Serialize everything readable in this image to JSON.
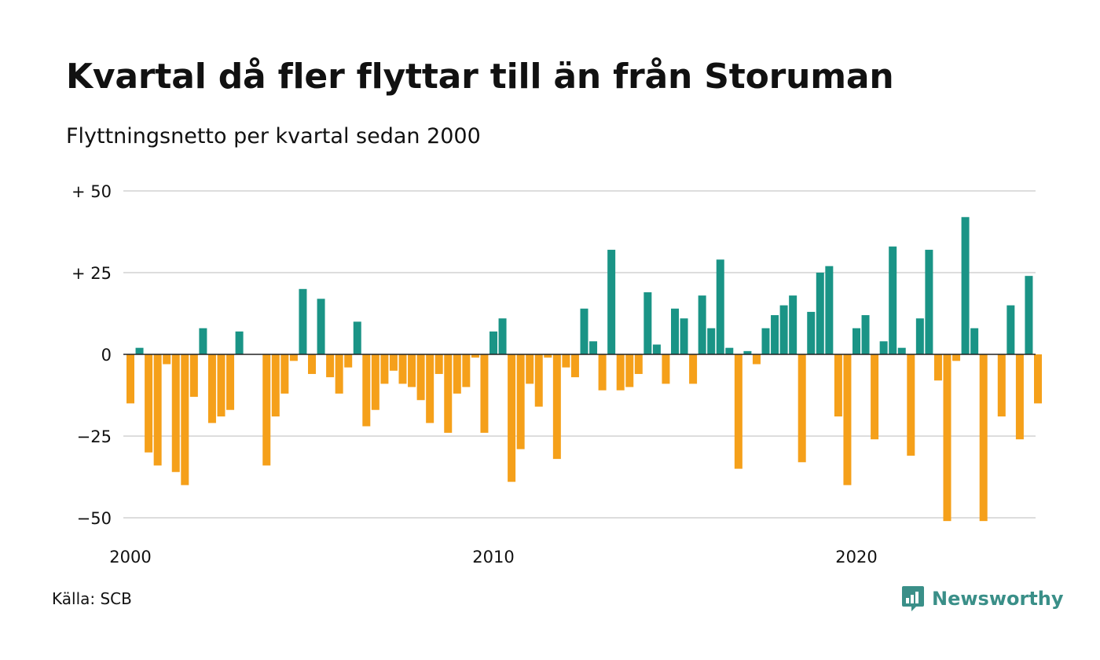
{
  "header": {
    "title": "Kvartal då fler flyttar till än från Storuman",
    "subtitle": "Flyttningsnetto per kvartal sedan 2000"
  },
  "footer": {
    "source": "Källa: SCB",
    "brand": "Newsworthy",
    "brand_icon": "bar-chart-speech-bubble-icon"
  },
  "colors": {
    "positive": "#1a9486",
    "negative": "#f5a01a",
    "grid": "#dddddd",
    "baseline": "#222222",
    "brand": "#3a8f88"
  },
  "chart_data": {
    "type": "bar",
    "x_ticks": [
      {
        "year": 2000,
        "label": "2000"
      },
      {
        "year": 2010,
        "label": "2010"
      },
      {
        "year": 2020,
        "label": "2020"
      }
    ],
    "y_ticks": [
      {
        "value": 50,
        "label": "+ 50"
      },
      {
        "value": 25,
        "label": "+ 25"
      },
      {
        "value": 0,
        "label": "0"
      },
      {
        "value": -25,
        "label": "−25"
      },
      {
        "value": -50,
        "label": "−50"
      }
    ],
    "ylim": [
      -50,
      50
    ],
    "start_year": 2000,
    "start_quarter": 1,
    "values": [
      -15,
      2,
      -30,
      -34,
      -3,
      -36,
      -40,
      -13,
      8,
      -21,
      -19,
      -17,
      7,
      0,
      0,
      -34,
      -19,
      -12,
      -2,
      20,
      -6,
      17,
      -7,
      -12,
      -4,
      10,
      -22,
      -17,
      -9,
      -5,
      -9,
      -10,
      -14,
      -21,
      -6,
      -24,
      -12,
      -10,
      -1,
      -24,
      7,
      11,
      -39,
      -29,
      -9,
      -16,
      -1,
      -32,
      -4,
      -7,
      14,
      4,
      -11,
      32,
      -11,
      -10,
      -6,
      19,
      3,
      -9,
      14,
      11,
      -9,
      18,
      8,
      29,
      2,
      -35,
      1,
      -3,
      8,
      12,
      15,
      18,
      -33,
      13,
      25,
      27,
      -19,
      -40,
      8,
      12,
      -26,
      4,
      33,
      2,
      -31,
      11,
      32,
      -8,
      -51,
      -2,
      42,
      8,
      -51,
      0,
      -19,
      15,
      -26,
      24,
      -15
    ]
  }
}
